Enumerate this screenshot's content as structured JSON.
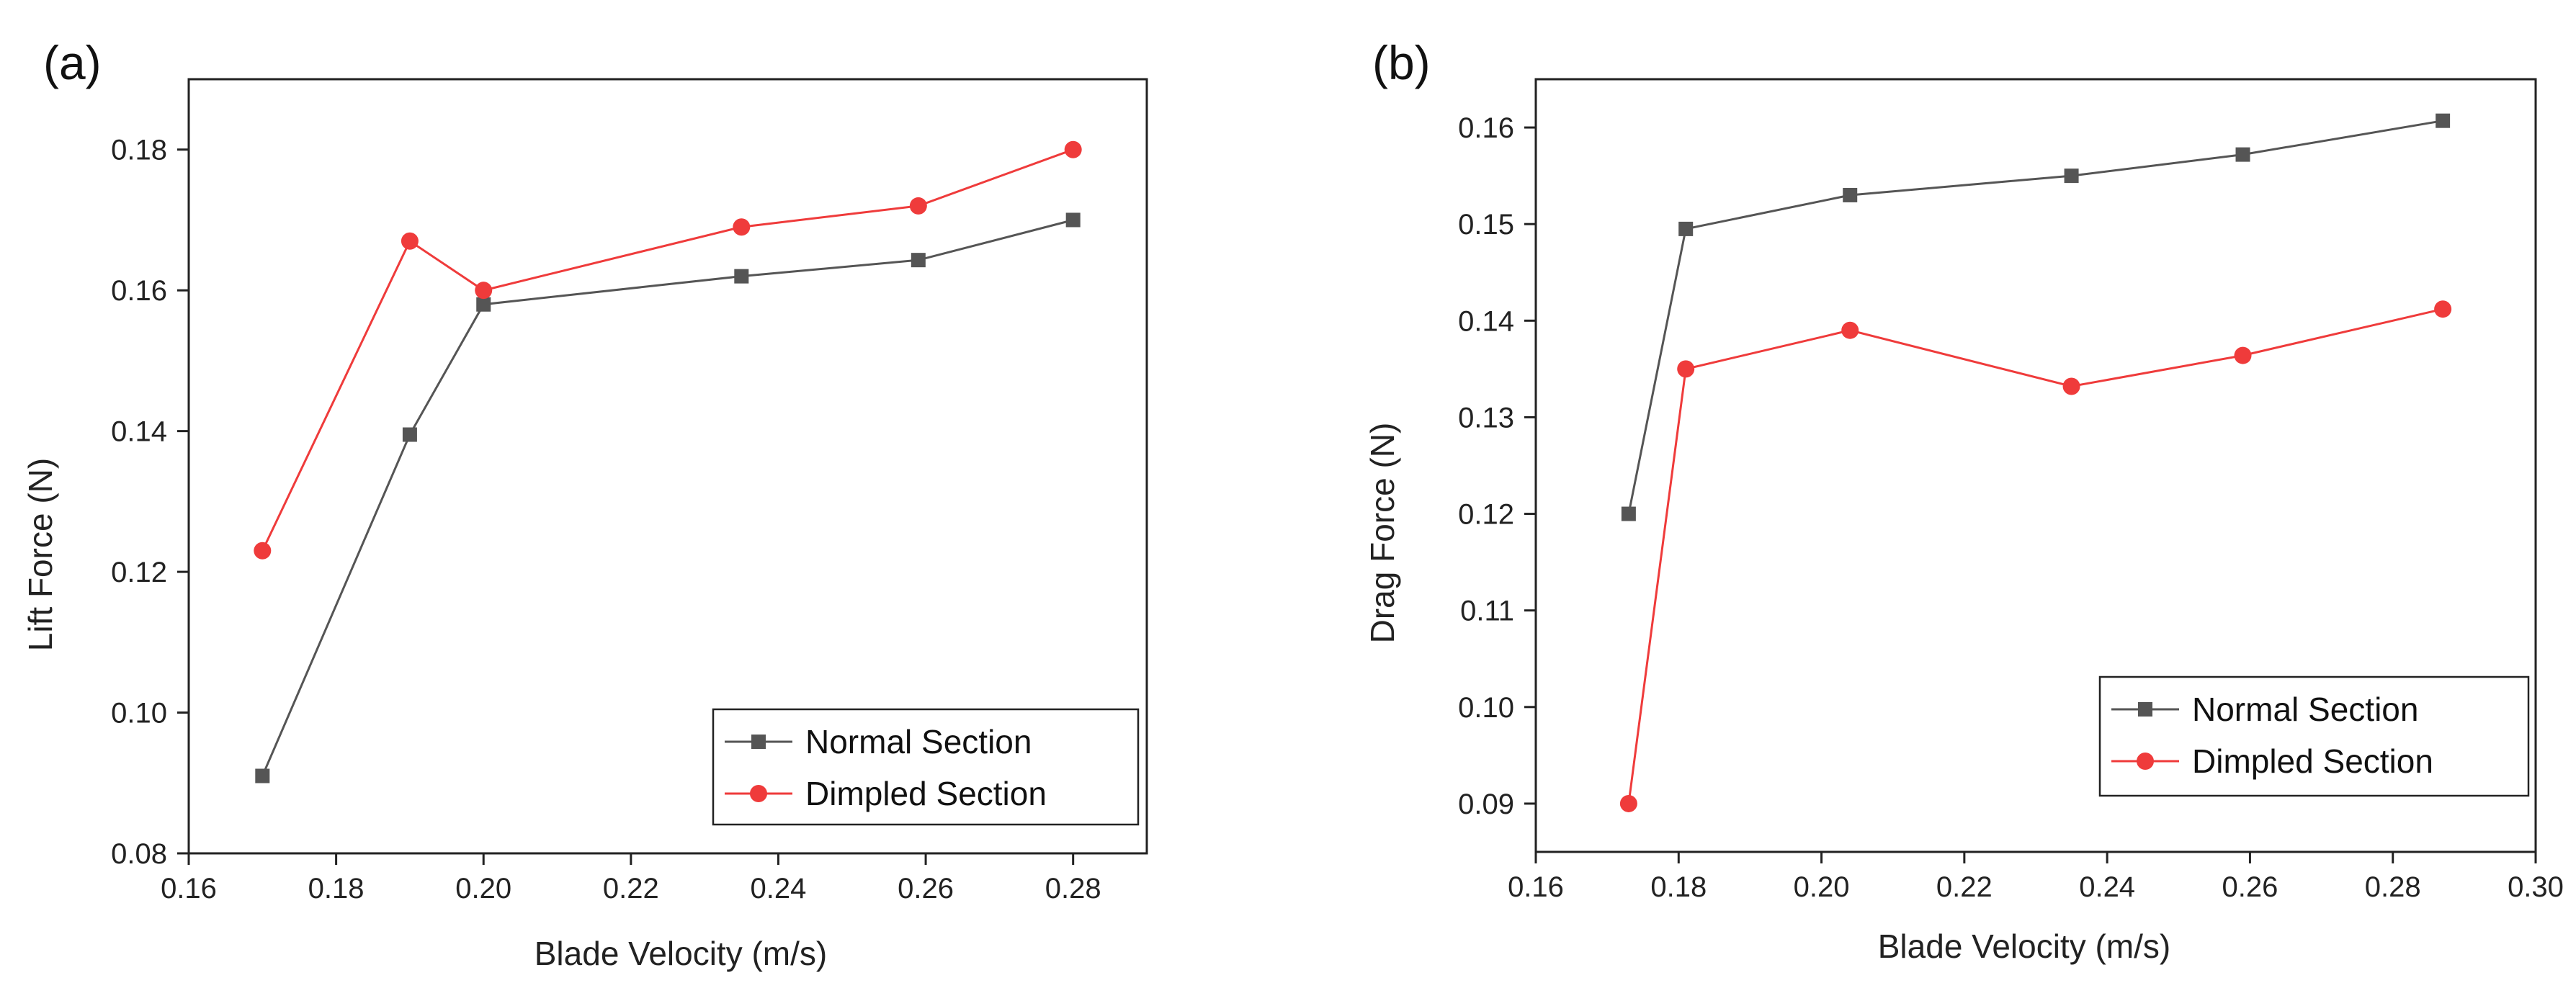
{
  "chart_data": [
    {
      "panel_label": "(a)",
      "type": "line",
      "title": "",
      "xlabel": "Blade Velocity (m/s)",
      "ylabel": "Lift Force (N)",
      "xlim": [
        0.16,
        0.29
      ],
      "ylim": [
        0.08,
        0.19
      ],
      "xticks": [
        0.16,
        0.18,
        0.2,
        0.22,
        0.24,
        0.26,
        0.28
      ],
      "xtick_labels": [
        "0.16",
        "0.18",
        "0.20",
        "0.22",
        "0.24",
        "0.26",
        "0.28"
      ],
      "yticks": [
        0.08,
        0.1,
        0.12,
        0.14,
        0.16,
        0.18
      ],
      "ytick_labels": [
        "0.08",
        "0.10",
        "0.12",
        "0.14",
        "0.16",
        "0.18"
      ],
      "legend_position": "bottom-right",
      "series": [
        {
          "name": "Normal Section",
          "color": "#555555",
          "marker": "square",
          "x": [
            0.17,
            0.19,
            0.2,
            0.235,
            0.259,
            0.28
          ],
          "values": [
            0.091,
            0.1395,
            0.158,
            0.162,
            0.1643,
            0.17
          ]
        },
        {
          "name": "Dimpled Section",
          "color": "#ef3b3b",
          "marker": "circle",
          "x": [
            0.17,
            0.19,
            0.2,
            0.235,
            0.259,
            0.28
          ],
          "values": [
            0.123,
            0.167,
            0.16,
            0.169,
            0.172,
            0.18
          ]
        }
      ]
    },
    {
      "panel_label": "(b)",
      "type": "line",
      "title": "",
      "xlabel": "Blade Velocity (m/s)",
      "ylabel": "Drag Force (N)",
      "xlim": [
        0.16,
        0.3
      ],
      "ylim": [
        0.085,
        0.165
      ],
      "xticks": [
        0.16,
        0.18,
        0.2,
        0.22,
        0.24,
        0.26,
        0.28,
        0.3
      ],
      "xtick_labels": [
        "0.16",
        "0.18",
        "0.20",
        "0.22",
        "0.24",
        "0.26",
        "0.28",
        "0.30"
      ],
      "yticks": [
        0.09,
        0.1,
        0.11,
        0.12,
        0.13,
        0.14,
        0.15,
        0.16
      ],
      "ytick_labels": [
        "0.09",
        "0.10",
        "0.11",
        "0.12",
        "0.13",
        "0.14",
        "0.15",
        "0.16"
      ],
      "legend_position": "bottom-right",
      "series": [
        {
          "name": "Normal Section",
          "color": "#555555",
          "marker": "square",
          "x": [
            0.173,
            0.181,
            0.204,
            0.235,
            0.259,
            0.287
          ],
          "values": [
            0.12,
            0.1495,
            0.153,
            0.155,
            0.1572,
            0.1607
          ]
        },
        {
          "name": "Dimpled Section",
          "color": "#ef3b3b",
          "marker": "circle",
          "x": [
            0.173,
            0.181,
            0.204,
            0.235,
            0.259,
            0.287
          ],
          "values": [
            0.09,
            0.135,
            0.139,
            0.1332,
            0.1364,
            0.1412
          ]
        }
      ]
    }
  ]
}
